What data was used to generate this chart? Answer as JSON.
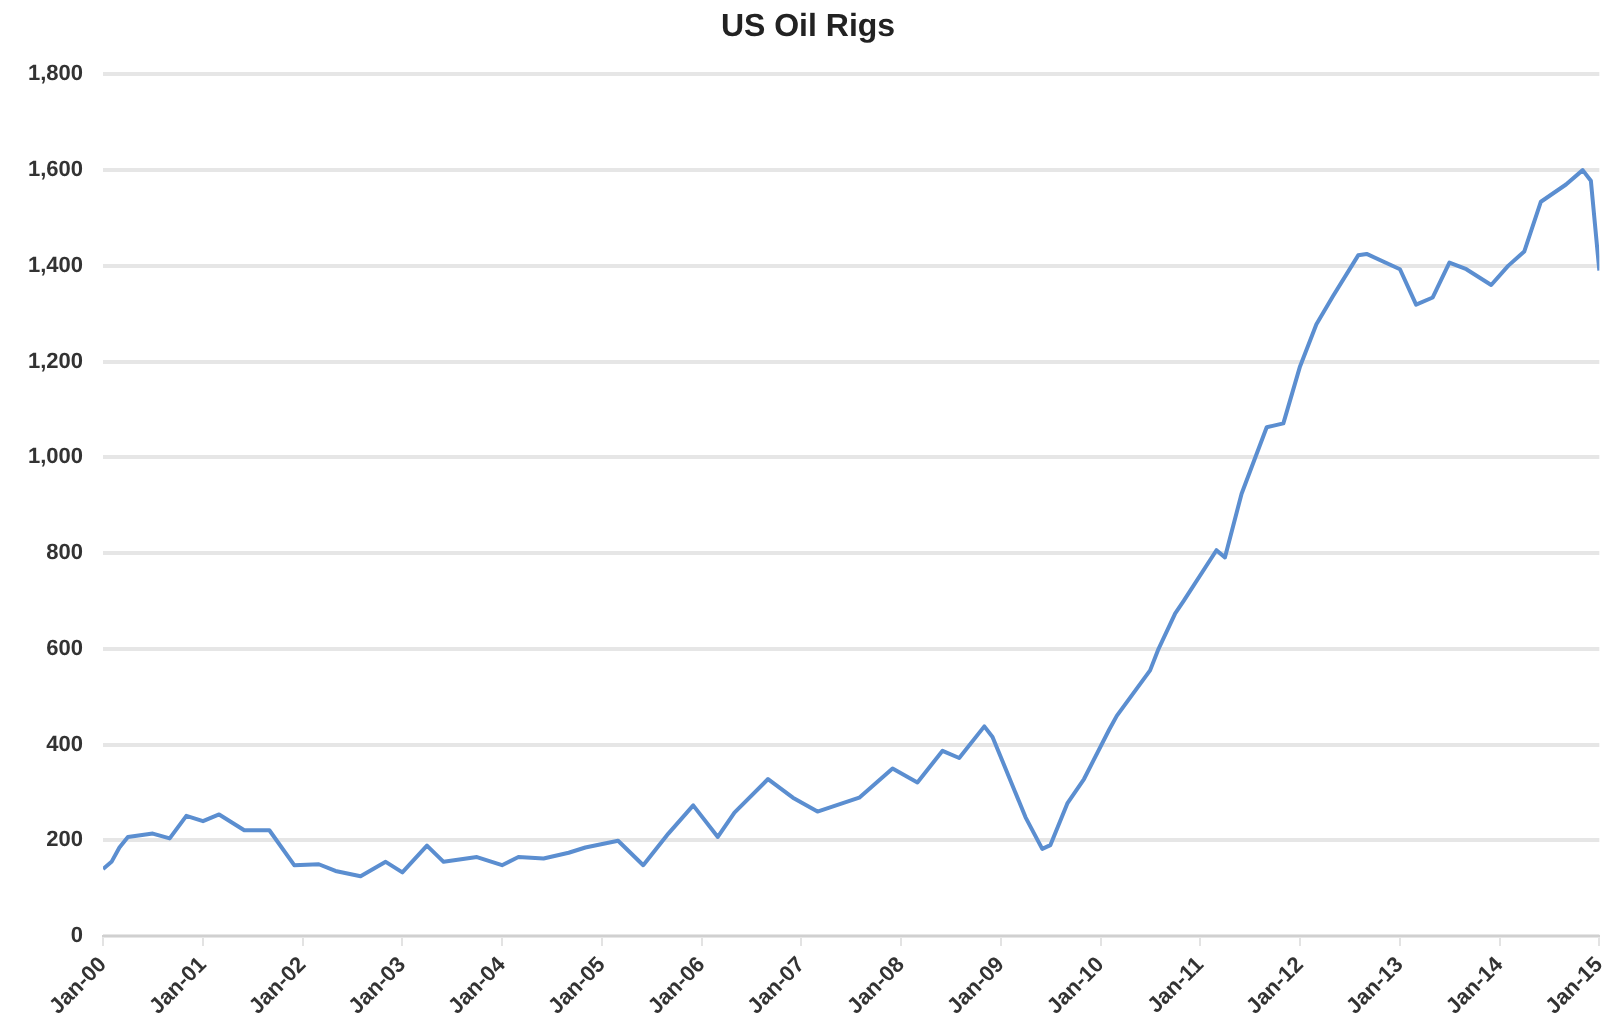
{
  "chart_data": {
    "type": "line",
    "title": "US Oil Rigs",
    "x": [
      "2000-01",
      "2000-02",
      "2000-03",
      "2000-04",
      "2000-07",
      "2000-09",
      "2000-11",
      "2001-01",
      "2001-03",
      "2001-06",
      "2001-09",
      "2001-12",
      "2002-03",
      "2002-05",
      "2002-08",
      "2002-11",
      "2003-01",
      "2003-04",
      "2003-06",
      "2003-10",
      "2004-01",
      "2004-03",
      "2004-06",
      "2004-09",
      "2004-11",
      "2005-03",
      "2005-06",
      "2005-09",
      "2005-12",
      "2006-03",
      "2006-05",
      "2006-09",
      "2006-12",
      "2007-03",
      "2007-08",
      "2007-12",
      "2008-03",
      "2008-06",
      "2008-08",
      "2008-11",
      "2008-12",
      "2009-04",
      "2009-06",
      "2009-07",
      "2009-09",
      "2009-11",
      "2010-02",
      "2010-03",
      "2010-07",
      "2010-08",
      "2010-10",
      "2010-11",
      "2011-03",
      "2011-04",
      "2011-06",
      "2011-09",
      "2011-11",
      "2012-01",
      "2012-03",
      "2012-05",
      "2012-08",
      "2012-09",
      "2013-01",
      "2013-03",
      "2013-05",
      "2013-07",
      "2013-09",
      "2013-12",
      "2014-02",
      "2014-04",
      "2014-06",
      "2014-09",
      "2014-11",
      "2014-12",
      "2015-01"
    ],
    "series": [
      {
        "color": "#5b8ed0",
        "values": [
          140,
          155,
          185,
          207,
          214,
          204,
          251,
          240,
          254,
          221,
          221,
          148,
          150,
          136,
          125,
          155,
          133,
          189,
          155,
          165,
          148,
          165,
          162,
          174,
          185,
          199,
          148,
          214,
          273,
          207,
          258,
          328,
          289,
          260,
          289,
          350,
          321,
          387,
          372,
          438,
          416,
          248,
          182,
          190,
          277,
          328,
          431,
          460,
          555,
          600,
          674,
          700,
          806,
          791,
          924,
          1063,
          1071,
          1190,
          1278,
          1337,
          1422,
          1425,
          1393,
          1319,
          1334,
          1407,
          1393,
          1360,
          1400,
          1430,
          1534,
          1570,
          1600,
          1578,
          1390
        ]
      }
    ],
    "xlim": [
      "2000-01",
      "2015-01"
    ],
    "xticks": [
      {
        "value": "2000-01",
        "label": "Jan-00"
      },
      {
        "value": "2001-01",
        "label": "Jan-01"
      },
      {
        "value": "2002-01",
        "label": "Jan-02"
      },
      {
        "value": "2003-01",
        "label": "Jan-03"
      },
      {
        "value": "2004-01",
        "label": "Jan-04"
      },
      {
        "value": "2005-01",
        "label": "Jan-05"
      },
      {
        "value": "2006-01",
        "label": "Jan-06"
      },
      {
        "value": "2007-01",
        "label": "Jan-07"
      },
      {
        "value": "2008-01",
        "label": "Jan-08"
      },
      {
        "value": "2009-01",
        "label": "Jan-09"
      },
      {
        "value": "2010-01",
        "label": "Jan-10"
      },
      {
        "value": "2011-01",
        "label": "Jan-11"
      },
      {
        "value": "2012-01",
        "label": "Jan-12"
      },
      {
        "value": "2013-01",
        "label": "Jan-13"
      },
      {
        "value": "2014-01",
        "label": "Jan-14"
      },
      {
        "value": "2015-01",
        "label": "Jan-15"
      }
    ],
    "ylim": [
      0,
      1800
    ],
    "yticks": [
      {
        "value": 0,
        "label": "0"
      },
      {
        "value": 200,
        "label": "200"
      },
      {
        "value": 400,
        "label": "400"
      },
      {
        "value": 600,
        "label": "600"
      },
      {
        "value": 800,
        "label": "800"
      },
      {
        "value": 1000,
        "label": "1,000"
      },
      {
        "value": 1200,
        "label": "1,200"
      },
      {
        "value": 1400,
        "label": "1,400"
      },
      {
        "value": 1600,
        "label": "1,600"
      },
      {
        "value": 1800,
        "label": "1,800"
      }
    ],
    "grid": "y",
    "legend": false,
    "marker": "none",
    "line_style": "solid"
  }
}
